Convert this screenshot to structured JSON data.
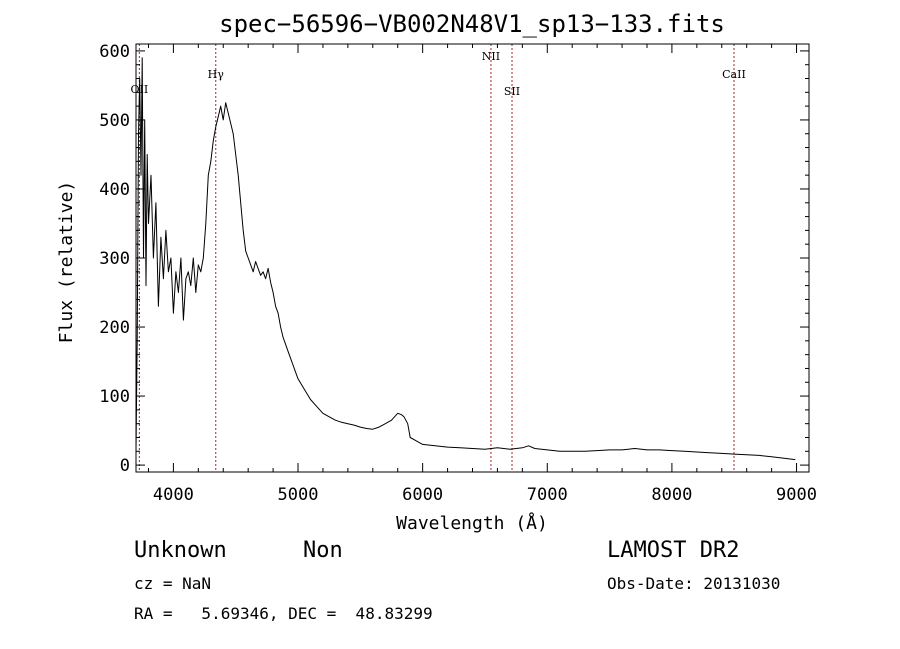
{
  "chart_data": {
    "type": "line",
    "title": "spec−56596−VB002N48V1_sp13−133.fits",
    "xlabel": "Wavelength (Å)",
    "ylabel": "Flux (relative)",
    "xlim": [
      3700,
      9100
    ],
    "ylim": [
      -10,
      610
    ],
    "xticks": [
      4000,
      5000,
      6000,
      7000,
      8000,
      9000
    ],
    "xtick_labels": [
      "4000",
      "5000",
      "6000",
      "7000",
      "8000",
      "9000"
    ],
    "yticks": [
      0,
      100,
      200,
      300,
      400,
      500,
      600
    ],
    "ytick_labels": [
      "0",
      "100",
      "200",
      "300",
      "400",
      "500",
      "600"
    ],
    "grid": false,
    "line_color": "#000000",
    "marker_color": "#b22222",
    "series": [
      {
        "x": [
          3700,
          3710,
          3720,
          3730,
          3740,
          3750,
          3760,
          3770,
          3780,
          3790,
          3800,
          3820,
          3840,
          3860,
          3880,
          3900,
          3920,
          3940,
          3960,
          3980,
          4000,
          4020,
          4040,
          4060,
          4080,
          4100,
          4120,
          4140,
          4160,
          4180,
          4200,
          4220,
          4240,
          4260,
          4280,
          4300,
          4320,
          4340,
          4360,
          4380,
          4400,
          4420,
          4440,
          4460,
          4480,
          4500,
          4520,
          4540,
          4560,
          4580,
          4600,
          4620,
          4640,
          4660,
          4680,
          4700,
          4720,
          4740,
          4760,
          4780,
          4800,
          4820,
          4840,
          4860,
          4880,
          4900,
          4920,
          4940,
          4960,
          4980,
          5000,
          5050,
          5100,
          5150,
          5200,
          5250,
          5300,
          5350,
          5400,
          5450,
          5500,
          5550,
          5600,
          5650,
          5700,
          5750,
          5800,
          5830,
          5850,
          5880,
          5900,
          5950,
          6000,
          6100,
          6200,
          6300,
          6400,
          6500,
          6600,
          6700,
          6800,
          6850,
          6900,
          7000,
          7100,
          7200,
          7300,
          7400,
          7500,
          7600,
          7650,
          7700,
          7800,
          7900,
          8000,
          8100,
          8200,
          8300,
          8400,
          8500,
          8600,
          8700,
          8800,
          8900,
          8990
        ],
        "y": [
          20,
          180,
          480,
          560,
          420,
          590,
          300,
          500,
          260,
          450,
          350,
          420,
          300,
          380,
          230,
          330,
          270,
          340,
          280,
          300,
          220,
          280,
          250,
          300,
          210,
          270,
          280,
          260,
          300,
          250,
          290,
          280,
          300,
          350,
          420,
          440,
          470,
          490,
          505,
          520,
          500,
          525,
          510,
          495,
          480,
          450,
          420,
          380,
          340,
          310,
          300,
          290,
          280,
          295,
          285,
          275,
          280,
          270,
          285,
          265,
          250,
          230,
          220,
          200,
          185,
          175,
          165,
          155,
          145,
          135,
          125,
          110,
          95,
          85,
          75,
          70,
          65,
          62,
          60,
          58,
          55,
          53,
          52,
          55,
          60,
          65,
          75,
          73,
          70,
          60,
          40,
          35,
          30,
          28,
          26,
          25,
          24,
          23,
          25,
          23,
          25,
          28,
          24,
          22,
          20,
          20,
          20,
          21,
          22,
          22,
          23,
          24,
          22,
          22,
          21,
          20,
          19,
          18,
          17,
          16,
          15,
          14,
          12,
          10,
          8
        ]
      }
    ],
    "annotations": [
      {
        "label": "OII",
        "x": 3727
      },
      {
        "label": "Hγ",
        "x": 4340
      },
      {
        "label": "NII",
        "x": 6548
      },
      {
        "label": "SII",
        "x": 6717
      },
      {
        "label": "CaII",
        "x": 8498
      }
    ]
  },
  "info": {
    "object_class": "Unknown",
    "object_subclass": "Non",
    "survey": "LAMOST DR2",
    "redshift": "cz = NaN",
    "obs_date": "Obs-Date: 20131030",
    "coords": "RA =   5.69346, DEC =  48.83299"
  }
}
